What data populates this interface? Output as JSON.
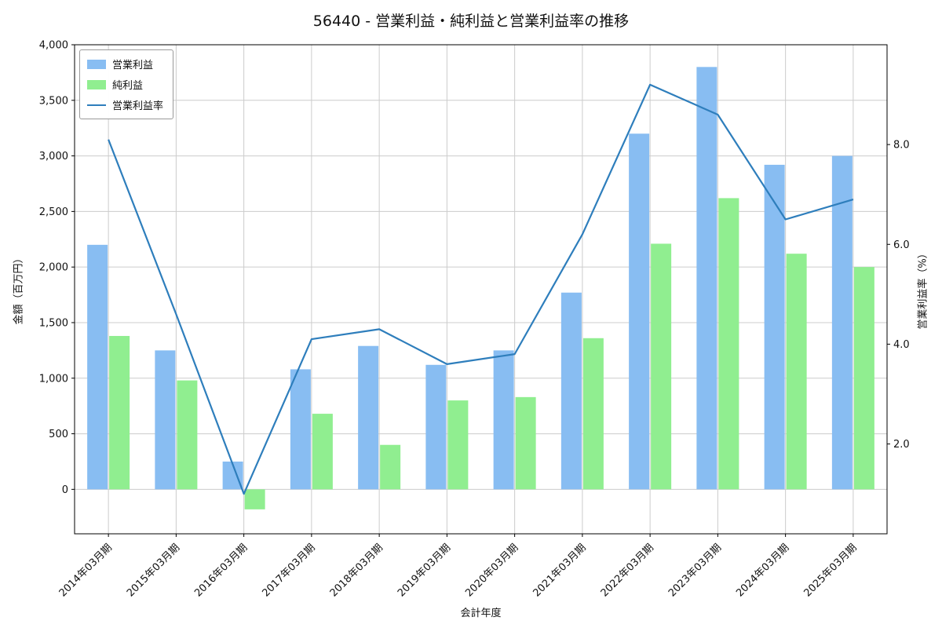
{
  "chart_data": {
    "type": "bar+line",
    "title": "56440 - 営業利益・純利益と営業利益率の推移",
    "xlabel": "会計年度",
    "ylabel_left": "金額（百万円）",
    "ylabel_right": "営業利益率（%）",
    "categories": [
      "2014年03月期",
      "2015年03月期",
      "2016年03月期",
      "2017年03月期",
      "2018年03月期",
      "2019年03月期",
      "2020年03月期",
      "2021年03月期",
      "2022年03月期",
      "2023年03月期",
      "2024年03月期",
      "2025年03月期"
    ],
    "series": [
      {
        "name": "営業利益",
        "type": "bar",
        "axis": "left",
        "color": "#88bdf2",
        "values": [
          2200,
          1250,
          250,
          1080,
          1290,
          1120,
          1250,
          1770,
          3200,
          3800,
          2920,
          3000
        ]
      },
      {
        "name": "純利益",
        "type": "bar",
        "axis": "left",
        "color": "#90ee90",
        "values": [
          1380,
          980,
          -180,
          680,
          400,
          800,
          830,
          1360,
          2210,
          2620,
          2120,
          2000
        ]
      },
      {
        "name": "営業利益率",
        "type": "line",
        "axis": "right",
        "color": "#2e7ebc",
        "values": [
          8.1,
          4.6,
          1.0,
          4.1,
          4.3,
          3.6,
          3.8,
          6.2,
          9.2,
          8.6,
          6.5,
          6.9
        ]
      }
    ],
    "ylim_left": [
      -400,
      4000
    ],
    "ylim_right": [
      0.2,
      10.0
    ],
    "yticks_left": {
      "values": [
        0,
        500,
        1000,
        1500,
        2000,
        2500,
        3000,
        3500,
        4000
      ],
      "labels": [
        "0",
        "500",
        "1,000",
        "1,500",
        "2,000",
        "2,500",
        "3,000",
        "3,500",
        "4,000"
      ]
    },
    "yticks_right": {
      "values": [
        2.0,
        4.0,
        6.0,
        8.0
      ],
      "labels": [
        "2.0",
        "4.0",
        "6.0",
        "8.0"
      ]
    },
    "grid": true,
    "legend_position": "upper-left",
    "colors": {
      "grid": "#cccccc",
      "spine": "#000000",
      "text": "#111111",
      "background": "#ffffff"
    }
  }
}
